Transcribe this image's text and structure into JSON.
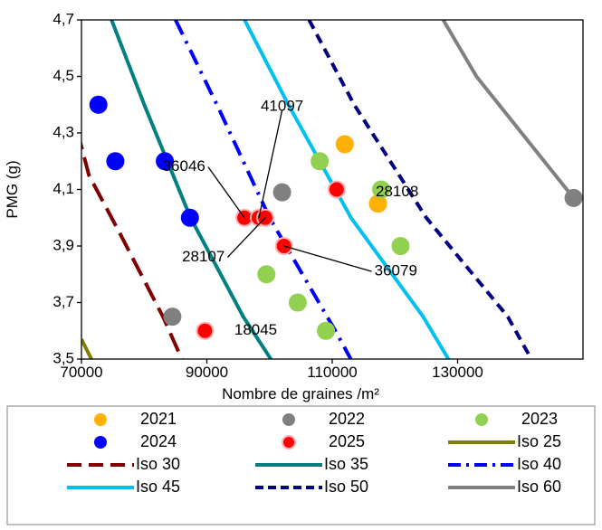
{
  "chart_data": {
    "type": "scatter",
    "xlabel": "Nombre de graines /m²",
    "ylabel": "PMG (g)",
    "xlim": [
      70000,
      150000
    ],
    "ylim": [
      3.5,
      4.7
    ],
    "x_ticks": [
      70000,
      90000,
      110000,
      130000
    ],
    "x_tick_labels": [
      "70000",
      "90000",
      "110000",
      "130000"
    ],
    "y_ticks": [
      3.5,
      3.7,
      3.9,
      4.1,
      4.3,
      4.5,
      4.7
    ],
    "y_tick_labels": [
      "3,5",
      "3,7",
      "3,9",
      "4,1",
      "4,3",
      "4,5",
      "4,7"
    ],
    "grid": false,
    "legend_position": "bottom",
    "points": [
      {
        "name": "2021",
        "color": "#FFB000",
        "values": [
          [
            112000,
            4.26
          ],
          [
            117300,
            4.05
          ]
        ]
      },
      {
        "name": "2022",
        "color": "#808080",
        "values": [
          [
            102000,
            4.09
          ],
          [
            84500,
            3.65
          ],
          [
            148500,
            4.07
          ]
        ]
      },
      {
        "name": "2023",
        "color": "#92D050",
        "values": [
          [
            108000,
            4.2
          ],
          [
            117800,
            4.1
          ],
          [
            120900,
            3.9
          ],
          [
            99500,
            3.8
          ],
          [
            104500,
            3.7
          ],
          [
            109000,
            3.6
          ]
        ]
      },
      {
        "name": "2024",
        "color": "#0000FF",
        "values": [
          [
            72700,
            4.4
          ],
          [
            75400,
            4.2
          ],
          [
            83300,
            4.2
          ],
          [
            87300,
            4.0
          ]
        ]
      },
      {
        "name": "2025",
        "color": "#FF0000",
        "values": [
          [
            96000,
            4.0
          ],
          [
            98300,
            4.0
          ],
          [
            99300,
            4.0
          ],
          [
            102300,
            3.9
          ],
          [
            110700,
            4.1
          ],
          [
            89700,
            3.6
          ]
        ]
      }
    ],
    "isolines": [
      {
        "name": "Iso 25",
        "color": "#808000",
        "dash": "solid",
        "values": [
          [
            70000,
            3.57
          ],
          [
            71800,
            3.49
          ]
        ]
      },
      {
        "name": "Iso 30",
        "color": "#800000",
        "dash": "longdash",
        "values": [
          [
            69300,
            4.31
          ],
          [
            71200,
            4.15
          ],
          [
            76000,
            3.95
          ],
          [
            83000,
            3.65
          ],
          [
            86200,
            3.49
          ]
        ]
      },
      {
        "name": "Iso 35",
        "color": "#008080",
        "dash": "solid",
        "values": [
          [
            74800,
            4.7
          ],
          [
            80000,
            4.4
          ],
          [
            87400,
            4.0
          ],
          [
            95800,
            3.65
          ],
          [
            100500,
            3.49
          ]
        ]
      },
      {
        "name": "Iso 40",
        "color": "#0000FF",
        "dash": "dashdot",
        "values": [
          [
            85000,
            4.7
          ],
          [
            91600,
            4.4
          ],
          [
            100000,
            4.0
          ],
          [
            110500,
            3.6
          ],
          [
            113200,
            3.49
          ]
        ]
      },
      {
        "name": "Iso 45",
        "color": "#00C0F0",
        "dash": "solid",
        "values": [
          [
            96000,
            4.7
          ],
          [
            103000,
            4.4
          ],
          [
            113000,
            4.0
          ],
          [
            124500,
            3.65
          ],
          [
            128800,
            3.49
          ]
        ]
      },
      {
        "name": "Iso 50",
        "color": "#000080",
        "dash": "dash",
        "values": [
          [
            106300,
            4.7
          ],
          [
            113500,
            4.4
          ],
          [
            125000,
            4.0
          ],
          [
            138000,
            3.65
          ],
          [
            142000,
            3.49
          ]
        ]
      },
      {
        "name": "Iso 60",
        "color": "#808080",
        "dash": "solid",
        "values": [
          [
            127700,
            4.7
          ],
          [
            133000,
            4.5
          ],
          [
            148500,
            4.07
          ]
        ]
      }
    ],
    "annotations": [
      {
        "text": "41097",
        "label": [
          102000,
          4.38
        ],
        "point": [
          98300,
          4.0
        ]
      },
      {
        "text": "36046",
        "label": [
          90200,
          4.18
        ],
        "point": [
          96000,
          4.0
        ]
      },
      {
        "text": "28108",
        "label": [
          116500,
          4.09
        ],
        "point": null
      },
      {
        "text": "28107",
        "label": [
          93300,
          3.86
        ],
        "point": [
          99300,
          4.0
        ]
      },
      {
        "text": "36079",
        "label": [
          116300,
          3.81
        ],
        "point": [
          102300,
          3.9
        ]
      },
      {
        "text": "18045",
        "label": [
          97800,
          3.6
        ],
        "point": null
      }
    ],
    "legend": [
      {
        "label": "2021",
        "kind": "dot",
        "color": "#FFB000"
      },
      {
        "label": "2022",
        "kind": "dot",
        "color": "#808080"
      },
      {
        "label": "2023",
        "kind": "dot",
        "color": "#92D050"
      },
      {
        "label": "2024",
        "kind": "dot",
        "color": "#0000FF"
      },
      {
        "label": "2025",
        "kind": "dot-ring",
        "color": "#FF0000"
      },
      {
        "label": "Iso 25",
        "kind": "line",
        "color": "#808000",
        "dash": "solid"
      },
      {
        "label": "Iso 30",
        "kind": "line",
        "color": "#800000",
        "dash": "longdash"
      },
      {
        "label": "Iso 35",
        "kind": "line",
        "color": "#008080",
        "dash": "solid"
      },
      {
        "label": "Iso 40",
        "kind": "line",
        "color": "#0000FF",
        "dash": "dashdot"
      },
      {
        "label": "Iso 45",
        "kind": "line",
        "color": "#00C0F0",
        "dash": "solid"
      },
      {
        "label": "Iso 50",
        "kind": "line",
        "color": "#000080",
        "dash": "dash"
      },
      {
        "label": "Iso 60",
        "kind": "line",
        "color": "#808080",
        "dash": "solid"
      }
    ]
  }
}
